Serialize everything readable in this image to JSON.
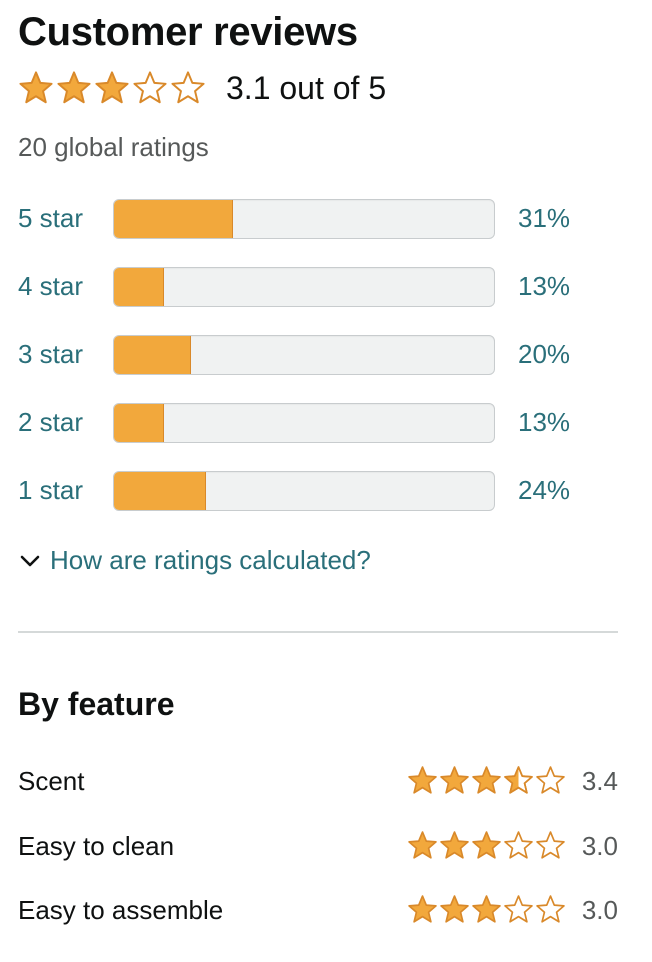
{
  "header": {
    "title": "Customer reviews"
  },
  "summary": {
    "rating": 3.1,
    "rating_text": "3.1 out of 5",
    "global_ratings": "20 global ratings"
  },
  "histogram": [
    {
      "label": "5 star",
      "percent": 31,
      "percent_text": "31%"
    },
    {
      "label": "4 star",
      "percent": 13,
      "percent_text": "13%"
    },
    {
      "label": "3 star",
      "percent": 20,
      "percent_text": "20%"
    },
    {
      "label": "2 star",
      "percent": 13,
      "percent_text": "13%"
    },
    {
      "label": "1 star",
      "percent": 24,
      "percent_text": "24%"
    }
  ],
  "ratings_help": {
    "label": "How are ratings calculated?",
    "icon": "chevron-down-icon"
  },
  "features": {
    "title": "By feature",
    "items": [
      {
        "name": "Scent",
        "rating": 3.4,
        "rating_text": "3.4"
      },
      {
        "name": "Easy to clean",
        "rating": 3.0,
        "rating_text": "3.0"
      },
      {
        "name": "Easy to assemble",
        "rating": 3.0,
        "rating_text": "3.0"
      }
    ]
  },
  "colors": {
    "star": "#f2a83c",
    "star_outline": "#d9892a",
    "link": "#2a6f7a",
    "bar_fill": "#f2a83c",
    "bar_track": "#f0f2f2"
  }
}
